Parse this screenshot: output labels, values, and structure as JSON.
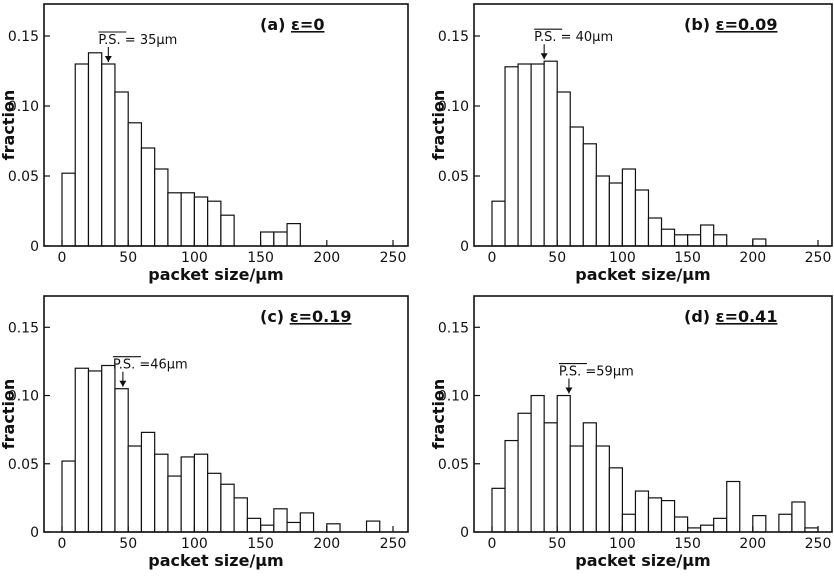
{
  "chart_data": [
    {
      "type": "bar",
      "panel": "(a)",
      "title_prefix": "(a)",
      "title_value": "ε=0",
      "xlabel": "packet size/μm",
      "ylabel": "fraction",
      "xlim": [
        0,
        250
      ],
      "ylim": [
        0,
        0.17
      ],
      "xticks": [
        0,
        50,
        100,
        150,
        200,
        250
      ],
      "yticks": [
        0,
        0.05,
        0.1,
        0.15
      ],
      "ytick_labels": [
        "0",
        "0.05",
        "0.10",
        "0.15"
      ],
      "bin_width": 10,
      "bin_starts": [
        0,
        10,
        20,
        30,
        40,
        50,
        60,
        70,
        80,
        90,
        100,
        110,
        120,
        130,
        140,
        150,
        160,
        170
      ],
      "values": [
        0.052,
        0.13,
        0.138,
        0.13,
        0.11,
        0.088,
        0.07,
        0.055,
        0.038,
        0.038,
        0.035,
        0.032,
        0.022,
        0.0,
        0.0,
        0.01,
        0.01,
        0.016
      ],
      "mean_label": "P.S. = 35μm",
      "mean_value": 35
    },
    {
      "type": "bar",
      "panel": "(b)",
      "title_prefix": "(b)",
      "title_value": "ε=0.09",
      "xlabel": "packet size/μm",
      "ylabel": "fraction",
      "xlim": [
        0,
        250
      ],
      "ylim": [
        0,
        0.17
      ],
      "xticks": [
        0,
        50,
        100,
        150,
        200,
        250
      ],
      "yticks": [
        0,
        0.05,
        0.1,
        0.15
      ],
      "ytick_labels": [
        "0",
        "0.05",
        "0.10",
        "0.15"
      ],
      "bin_width": 10,
      "bin_starts": [
        0,
        10,
        20,
        30,
        40,
        50,
        60,
        70,
        80,
        90,
        100,
        110,
        120,
        130,
        140,
        150,
        160,
        170,
        180,
        190,
        200
      ],
      "values": [
        0.032,
        0.128,
        0.13,
        0.13,
        0.132,
        0.11,
        0.085,
        0.073,
        0.05,
        0.045,
        0.055,
        0.04,
        0.02,
        0.012,
        0.008,
        0.008,
        0.015,
        0.008,
        0.0,
        0.0,
        0.005
      ],
      "mean_label": "P.S. = 40μm",
      "mean_value": 40
    },
    {
      "type": "bar",
      "panel": "(c)",
      "title_prefix": "(c)",
      "title_value": "ε=0.19",
      "xlabel": "packet size/μm",
      "ylabel": "fraction",
      "xlim": [
        0,
        250
      ],
      "ylim": [
        0,
        0.17
      ],
      "xticks": [
        0,
        50,
        100,
        150,
        200,
        250
      ],
      "yticks": [
        0,
        0.05,
        0.1,
        0.15
      ],
      "ytick_labels": [
        "0",
        "0.05",
        "0.10",
        "0.15"
      ],
      "bin_width": 10,
      "bin_starts": [
        0,
        10,
        20,
        30,
        40,
        50,
        60,
        70,
        80,
        90,
        100,
        110,
        120,
        130,
        140,
        150,
        160,
        170,
        180,
        190,
        200,
        210,
        220,
        230
      ],
      "values": [
        0.052,
        0.12,
        0.118,
        0.122,
        0.105,
        0.063,
        0.073,
        0.057,
        0.041,
        0.055,
        0.057,
        0.043,
        0.035,
        0.025,
        0.01,
        0.005,
        0.017,
        0.007,
        0.014,
        0.0,
        0.006,
        0.0,
        0.0,
        0.008
      ],
      "mean_label": "P.S. =46μm",
      "mean_value": 46
    },
    {
      "type": "bar",
      "panel": "(d)",
      "title_prefix": "(d)",
      "title_value": "ε=0.41",
      "xlabel": "packet size/μm",
      "ylabel": "fraction",
      "xlim": [
        0,
        250
      ],
      "ylim": [
        0,
        0.17
      ],
      "xticks": [
        0,
        50,
        100,
        150,
        200,
        250
      ],
      "yticks": [
        0,
        0.05,
        0.1,
        0.15
      ],
      "ytick_labels": [
        "0",
        "0.05",
        "0.10",
        "0.15"
      ],
      "bin_width": 10,
      "bin_starts": [
        0,
        10,
        20,
        30,
        40,
        50,
        60,
        70,
        80,
        90,
        100,
        110,
        120,
        130,
        140,
        150,
        160,
        170,
        180,
        190,
        200,
        210,
        220,
        230,
        240
      ],
      "values": [
        0.032,
        0.067,
        0.087,
        0.1,
        0.08,
        0.1,
        0.063,
        0.08,
        0.063,
        0.047,
        0.013,
        0.03,
        0.025,
        0.023,
        0.011,
        0.003,
        0.005,
        0.01,
        0.037,
        0.0,
        0.012,
        0.0,
        0.013,
        0.022,
        0.003
      ],
      "mean_label": "P.S. =59μm",
      "mean_value": 59
    }
  ]
}
